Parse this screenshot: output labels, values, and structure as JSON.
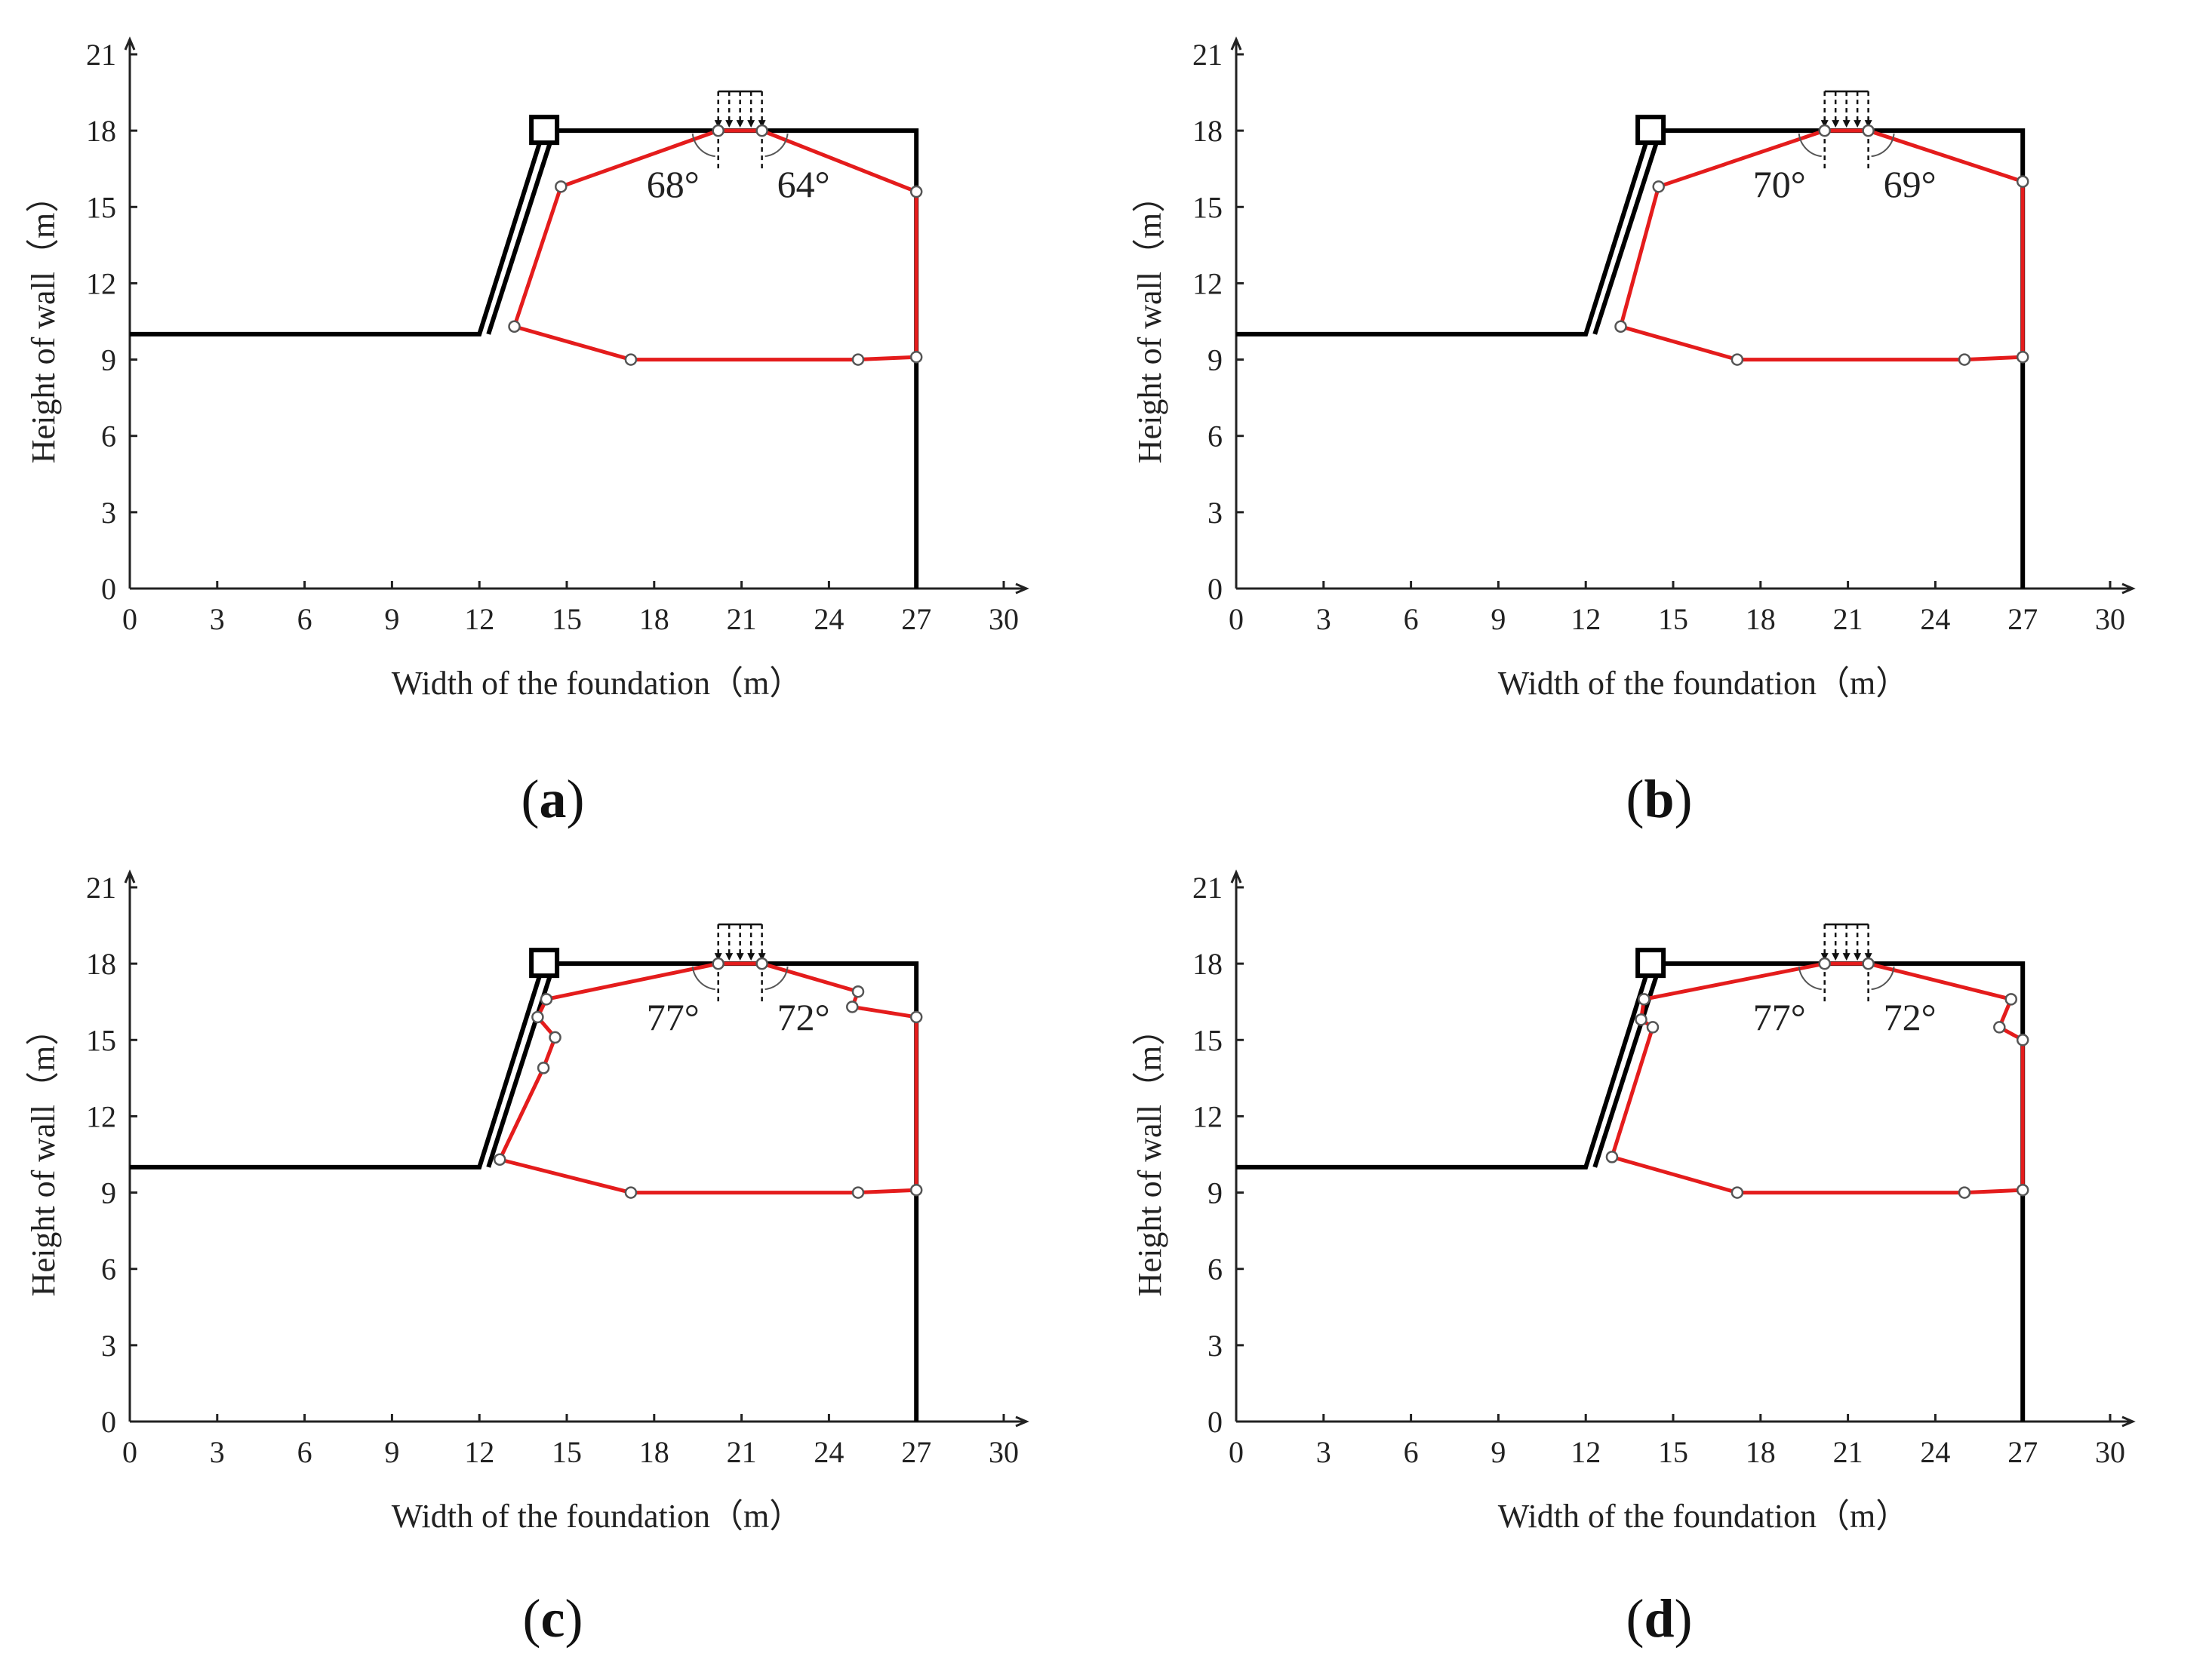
{
  "chart_data": [
    {
      "id": "a",
      "type": "line",
      "panel_label": "a",
      "xlabel": "Width of the foundation（m）",
      "ylabel": "Height of wall（m）",
      "xlim": [
        0,
        30
      ],
      "ylim": [
        0,
        21
      ],
      "xticks": [
        0,
        3,
        6,
        9,
        12,
        15,
        18,
        21,
        24,
        27,
        30
      ],
      "yticks": [
        0,
        3,
        6,
        9,
        12,
        15,
        18,
        21
      ],
      "wall_outline": [
        [
          0,
          10
        ],
        [
          12,
          10
        ],
        [
          14.2,
          18
        ],
        [
          27,
          18
        ],
        [
          27,
          0
        ]
      ],
      "slip_surface": [
        [
          13.2,
          10.3
        ],
        [
          17.2,
          9
        ],
        [
          25,
          9
        ],
        [
          27,
          9.1
        ],
        [
          27,
          15.6
        ],
        [
          21.7,
          18
        ],
        [
          20.2,
          18
        ],
        [
          14.8,
          15.8
        ],
        [
          13.2,
          10.3
        ]
      ],
      "slip_nodes": [
        [
          13.2,
          10.3
        ],
        [
          17.2,
          9
        ],
        [
          25,
          9
        ],
        [
          27,
          9.1
        ],
        [
          27,
          15.6
        ],
        [
          21.7,
          18
        ],
        [
          20.2,
          18
        ],
        [
          14.8,
          15.8
        ]
      ],
      "load": {
        "x_start": 20.2,
        "x_end": 21.7
      },
      "angles": [
        {
          "label": "68°",
          "x": 20.2
        },
        {
          "label": "64°",
          "x": 21.7
        }
      ]
    },
    {
      "id": "b",
      "type": "line",
      "panel_label": "b",
      "xlabel": "Width of the foundation（m）",
      "ylabel": "Height of wall（m）",
      "xlim": [
        0,
        30
      ],
      "ylim": [
        0,
        21
      ],
      "xticks": [
        0,
        3,
        6,
        9,
        12,
        15,
        18,
        21,
        24,
        27,
        30
      ],
      "yticks": [
        0,
        3,
        6,
        9,
        12,
        15,
        18,
        21
      ],
      "wall_outline": [
        [
          0,
          10
        ],
        [
          12,
          10
        ],
        [
          14.2,
          18
        ],
        [
          27,
          18
        ],
        [
          27,
          0
        ]
      ],
      "slip_surface": [
        [
          13.2,
          10.3
        ],
        [
          17.2,
          9
        ],
        [
          25,
          9
        ],
        [
          27,
          9.1
        ],
        [
          27,
          16
        ],
        [
          21.7,
          18
        ],
        [
          20.2,
          18
        ],
        [
          14.5,
          15.8
        ],
        [
          13.2,
          10.3
        ]
      ],
      "slip_nodes": [
        [
          13.2,
          10.3
        ],
        [
          17.2,
          9
        ],
        [
          25,
          9
        ],
        [
          27,
          9.1
        ],
        [
          27,
          16
        ],
        [
          21.7,
          18
        ],
        [
          20.2,
          18
        ],
        [
          14.5,
          15.8
        ]
      ],
      "load": {
        "x_start": 20.2,
        "x_end": 21.7
      },
      "angles": [
        {
          "label": "70°",
          "x": 20.2
        },
        {
          "label": "69°",
          "x": 21.7
        }
      ]
    },
    {
      "id": "c",
      "type": "line",
      "panel_label": "c",
      "xlabel": "Width of the foundation（m）",
      "ylabel": "Height of wall（m）",
      "xlim": [
        0,
        30
      ],
      "ylim": [
        0,
        21
      ],
      "xticks": [
        0,
        3,
        6,
        9,
        12,
        15,
        18,
        21,
        24,
        27,
        30
      ],
      "yticks": [
        0,
        3,
        6,
        9,
        12,
        15,
        18,
        21
      ],
      "wall_outline": [
        [
          0,
          10
        ],
        [
          12,
          10
        ],
        [
          14.2,
          18
        ],
        [
          27,
          18
        ],
        [
          27,
          0
        ]
      ],
      "slip_surface": [
        [
          12.7,
          10.3
        ],
        [
          17.2,
          9
        ],
        [
          25,
          9
        ],
        [
          27,
          9.1
        ],
        [
          27,
          15.9
        ],
        [
          24.8,
          16.3
        ],
        [
          25,
          16.9
        ],
        [
          21.7,
          18
        ],
        [
          20.2,
          18
        ],
        [
          14.3,
          16.6
        ],
        [
          14,
          15.9
        ],
        [
          14.6,
          15.1
        ],
        [
          14.2,
          13.9
        ],
        [
          12.7,
          10.3
        ]
      ],
      "slip_nodes": [
        [
          12.7,
          10.3
        ],
        [
          17.2,
          9
        ],
        [
          25,
          9
        ],
        [
          27,
          9.1
        ],
        [
          27,
          15.9
        ],
        [
          24.8,
          16.3
        ],
        [
          25,
          16.9
        ],
        [
          21.7,
          18
        ],
        [
          20.2,
          18
        ],
        [
          14.3,
          16.6
        ],
        [
          14,
          15.9
        ],
        [
          14.6,
          15.1
        ],
        [
          14.2,
          13.9
        ]
      ],
      "load": {
        "x_start": 20.2,
        "x_end": 21.7
      },
      "angles": [
        {
          "label": "77°",
          "x": 20.2
        },
        {
          "label": "72°",
          "x": 21.7
        }
      ]
    },
    {
      "id": "d",
      "type": "line",
      "panel_label": "d",
      "xlabel": "Width of the foundation（m）",
      "ylabel": "Height of wall（m）",
      "xlim": [
        0,
        30
      ],
      "ylim": [
        0,
        21
      ],
      "xticks": [
        0,
        3,
        6,
        9,
        12,
        15,
        18,
        21,
        24,
        27,
        30
      ],
      "yticks": [
        0,
        3,
        6,
        9,
        12,
        15,
        18,
        21
      ],
      "wall_outline": [
        [
          0,
          10
        ],
        [
          12,
          10
        ],
        [
          14.2,
          18
        ],
        [
          27,
          18
        ],
        [
          27,
          0
        ]
      ],
      "slip_surface": [
        [
          12.9,
          10.4
        ],
        [
          17.2,
          9
        ],
        [
          25,
          9
        ],
        [
          27,
          9.1
        ],
        [
          27,
          15
        ],
        [
          26.2,
          15.5
        ],
        [
          26.6,
          16.6
        ],
        [
          21.7,
          18
        ],
        [
          20.2,
          18
        ],
        [
          14,
          16.6
        ],
        [
          13.9,
          15.8
        ],
        [
          14.3,
          15.5
        ],
        [
          12.9,
          10.4
        ]
      ],
      "slip_nodes": [
        [
          12.9,
          10.4
        ],
        [
          17.2,
          9
        ],
        [
          25,
          9
        ],
        [
          27,
          9.1
        ],
        [
          27,
          15
        ],
        [
          26.2,
          15.5
        ],
        [
          26.6,
          16.6
        ],
        [
          21.7,
          18
        ],
        [
          20.2,
          18
        ],
        [
          14,
          16.6
        ],
        [
          13.9,
          15.8
        ],
        [
          14.3,
          15.5
        ]
      ],
      "load": {
        "x_start": 20.2,
        "x_end": 21.7
      },
      "angles": [
        {
          "label": "77°",
          "x": 20.2
        },
        {
          "label": "72°",
          "x": 21.7
        }
      ]
    }
  ]
}
